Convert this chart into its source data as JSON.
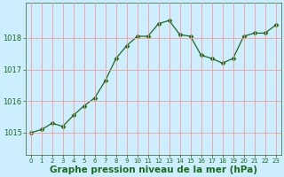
{
  "x": [
    0,
    1,
    2,
    3,
    4,
    5,
    6,
    7,
    8,
    9,
    10,
    11,
    12,
    13,
    14,
    15,
    16,
    17,
    18,
    19,
    20,
    21,
    22,
    23
  ],
  "y": [
    1015.0,
    1015.1,
    1015.3,
    1015.2,
    1015.55,
    1015.85,
    1016.1,
    1016.65,
    1017.35,
    1017.75,
    1018.05,
    1018.05,
    1018.45,
    1018.55,
    1018.1,
    1018.05,
    1017.45,
    1017.35,
    1017.2,
    1017.35,
    1018.05,
    1018.15,
    1018.15,
    1018.4
  ],
  "line_color": "#1a6b1a",
  "marker": "D",
  "markersize": 2.5,
  "bg_color": "#cceeff",
  "grid_color": "#ff9999",
  "xlabel": "Graphe pression niveau de la mer (hPa)",
  "xlabel_fontsize": 7.5,
  "tick_color": "#1a6b1a",
  "yticks": [
    1015,
    1016,
    1017,
    1018
  ],
  "ylim": [
    1014.3,
    1019.1
  ],
  "xlim": [
    -0.5,
    23.5
  ],
  "xticks": [
    0,
    1,
    2,
    3,
    4,
    5,
    6,
    7,
    8,
    9,
    10,
    11,
    12,
    13,
    14,
    15,
    16,
    17,
    18,
    19,
    20,
    21,
    22,
    23
  ]
}
